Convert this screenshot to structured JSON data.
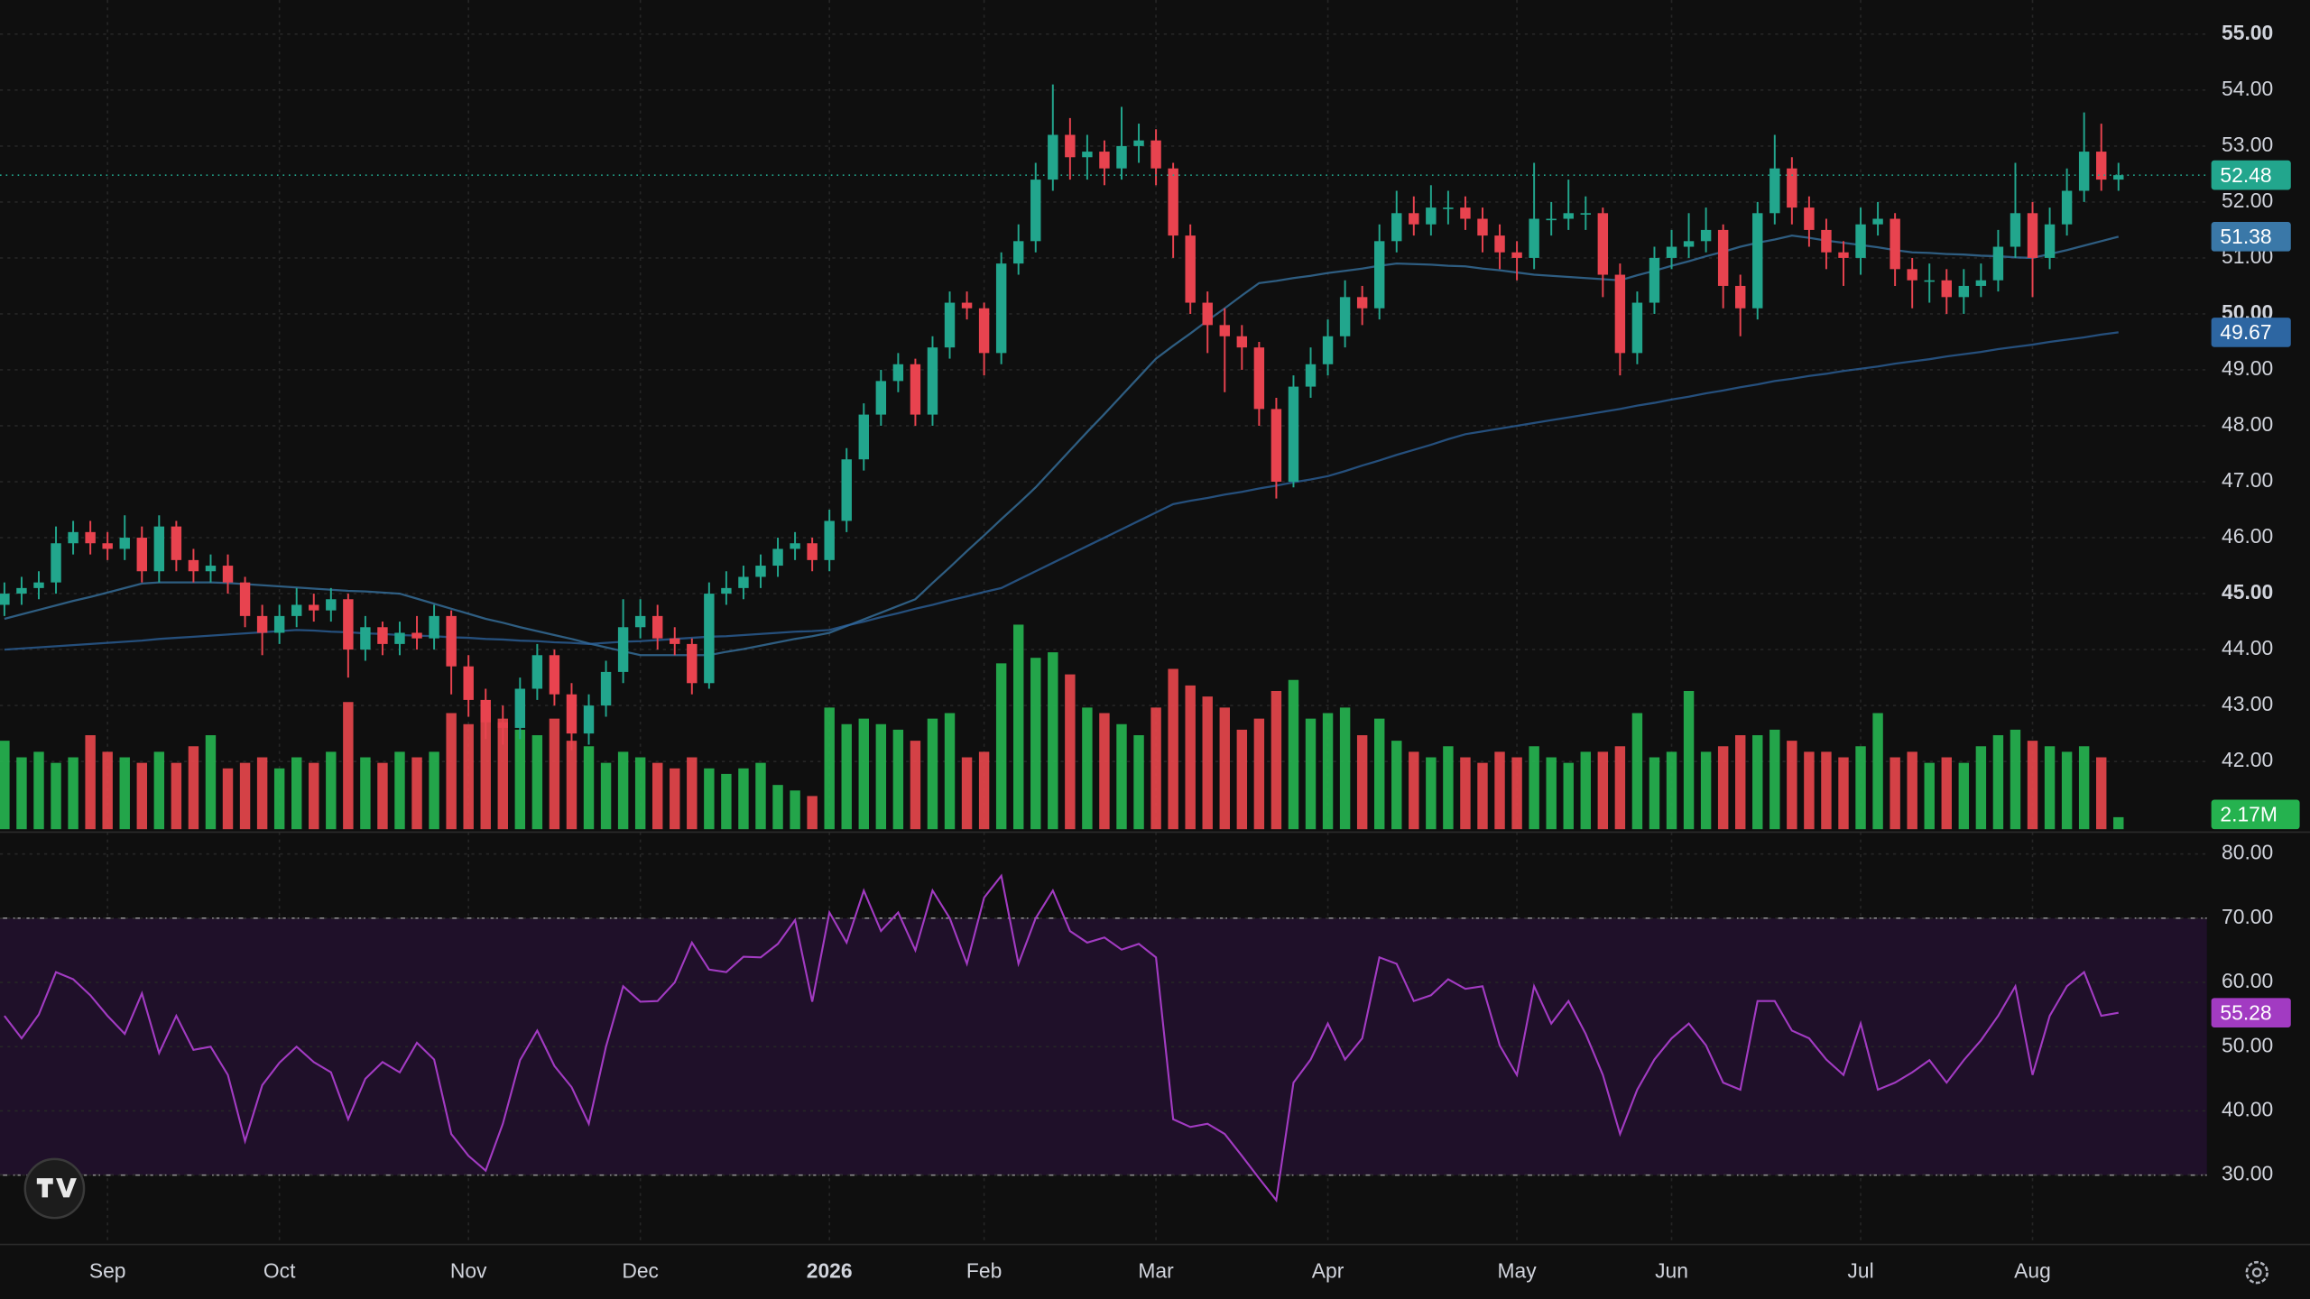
{
  "chart_data": {
    "type": "candlestick",
    "categories": [
      null,
      null,
      null,
      null,
      null,
      null,
      "Sep",
      null,
      null,
      null,
      null,
      null,
      null,
      null,
      null,
      null,
      "Oct",
      null,
      null,
      null,
      null,
      null,
      null,
      null,
      null,
      null,
      null,
      "Nov",
      null,
      null,
      null,
      null,
      null,
      null,
      null,
      null,
      null,
      "Dec",
      null,
      null,
      null,
      null,
      null,
      null,
      null,
      null,
      null,
      null,
      "2026",
      null,
      null,
      null,
      null,
      null,
      null,
      null,
      null,
      "Feb",
      null,
      null,
      null,
      null,
      null,
      null,
      null,
      null,
      null,
      "Mar",
      null,
      null,
      null,
      null,
      null,
      null,
      null,
      null,
      null,
      "Apr",
      null,
      null,
      null,
      null,
      null,
      null,
      null,
      null,
      null,
      null,
      "May",
      null,
      null,
      null,
      null,
      null,
      null,
      null,
      null,
      "Jun",
      null,
      null,
      null,
      null,
      null,
      null,
      null,
      null,
      null,
      null,
      "Jul",
      null,
      null,
      null,
      null,
      null,
      null,
      null,
      null,
      null,
      "Aug",
      null,
      null,
      null,
      null,
      null
    ],
    "open": [
      44.8,
      45.0,
      45.1,
      45.2,
      45.9,
      46.1,
      45.9,
      45.8,
      46.0,
      45.4,
      46.2,
      45.6,
      45.4,
      45.5,
      45.2,
      44.6,
      44.3,
      44.6,
      44.8,
      44.7,
      44.9,
      44.0,
      44.4,
      44.1,
      44.3,
      44.2,
      44.6,
      43.7,
      43.1,
      42.7,
      42.6,
      43.3,
      43.9,
      43.2,
      42.5,
      43.0,
      43.6,
      44.4,
      44.6,
      44.2,
      44.1,
      43.4,
      45.0,
      45.1,
      45.3,
      45.5,
      45.8,
      45.9,
      45.6,
      46.3,
      47.4,
      48.2,
      48.8,
      49.1,
      48.2,
      49.4,
      50.2,
      50.1,
      49.3,
      50.9,
      51.3,
      52.4,
      53.2,
      52.8,
      52.9,
      52.6,
      53.0,
      53.1,
      52.6,
      51.4,
      50.2,
      49.8,
      49.6,
      49.4,
      48.3,
      47.0,
      48.7,
      49.1,
      49.6,
      50.3,
      50.1,
      51.3,
      51.8,
      51.6,
      51.9,
      51.9,
      51.7,
      51.4,
      51.1,
      51.0,
      51.7,
      51.7,
      51.8,
      51.8,
      50.7,
      49.3,
      50.2,
      51.0,
      51.2,
      51.3,
      51.5,
      50.5,
      50.1,
      51.8,
      52.6,
      51.9,
      51.5,
      51.1,
      51.0,
      51.6,
      51.7,
      50.8,
      50.6,
      50.6,
      50.3,
      50.5,
      50.6,
      51.2,
      51.8,
      51.0,
      51.6,
      52.2,
      52.9,
      52.4
    ],
    "high": [
      45.2,
      45.3,
      45.4,
      46.2,
      46.3,
      46.3,
      46.1,
      46.4,
      46.2,
      46.4,
      46.3,
      45.8,
      45.7,
      45.7,
      45.3,
      44.8,
      44.8,
      45.1,
      45.0,
      45.1,
      45.0,
      44.6,
      44.5,
      44.5,
      44.6,
      44.8,
      44.7,
      43.9,
      43.3,
      43.0,
      43.5,
      44.1,
      44.0,
      43.4,
      43.2,
      43.8,
      44.9,
      44.9,
      44.8,
      44.4,
      44.2,
      45.2,
      45.4,
      45.5,
      45.7,
      46.0,
      46.1,
      46.0,
      46.5,
      47.6,
      48.4,
      49.0,
      49.3,
      49.2,
      49.6,
      50.4,
      50.4,
      50.2,
      51.1,
      51.6,
      52.7,
      54.1,
      53.5,
      53.2,
      53.1,
      53.7,
      53.4,
      53.3,
      52.7,
      51.6,
      50.4,
      50.1,
      49.8,
      49.5,
      48.5,
      48.9,
      49.4,
      49.9,
      50.6,
      50.5,
      51.6,
      52.2,
      52.1,
      52.3,
      52.2,
      52.1,
      51.9,
      51.6,
      51.3,
      52.7,
      52.0,
      52.4,
      52.1,
      51.9,
      50.9,
      50.4,
      51.2,
      51.5,
      51.8,
      51.9,
      51.6,
      50.7,
      52.0,
      53.2,
      52.8,
      52.1,
      51.7,
      51.3,
      51.9,
      52.0,
      51.8,
      51.0,
      50.9,
      50.8,
      50.8,
      50.9,
      51.5,
      52.7,
      52.0,
      51.9,
      52.6,
      53.6,
      53.4,
      52.7
    ],
    "low": [
      44.6,
      44.8,
      44.9,
      45.0,
      45.7,
      45.7,
      45.6,
      45.6,
      45.2,
      45.2,
      45.4,
      45.2,
      45.2,
      45.0,
      44.4,
      43.9,
      44.1,
      44.4,
      44.5,
      44.5,
      43.5,
      43.8,
      43.9,
      43.9,
      44.0,
      44.0,
      43.2,
      42.8,
      42.4,
      42.3,
      42.4,
      43.1,
      43.0,
      42.2,
      42.3,
      42.8,
      43.4,
      44.2,
      44.0,
      43.9,
      43.2,
      43.3,
      44.8,
      44.9,
      45.1,
      45.3,
      45.6,
      45.4,
      45.4,
      46.1,
      47.2,
      48.0,
      48.6,
      48.0,
      48.0,
      49.2,
      49.9,
      48.9,
      49.1,
      50.7,
      51.1,
      52.2,
      52.4,
      52.4,
      52.3,
      52.4,
      52.7,
      52.3,
      51.0,
      50.0,
      49.3,
      48.6,
      49.0,
      48.0,
      46.7,
      46.9,
      48.5,
      48.9,
      49.4,
      49.8,
      49.9,
      51.1,
      51.4,
      51.4,
      51.6,
      51.5,
      51.1,
      50.8,
      50.6,
      50.8,
      51.4,
      51.5,
      51.5,
      50.3,
      48.9,
      49.1,
      50.0,
      50.8,
      51.0,
      51.1,
      50.1,
      49.6,
      49.9,
      51.6,
      51.6,
      51.2,
      50.8,
      50.5,
      50.7,
      51.4,
      50.5,
      50.1,
      50.2,
      50.0,
      50.0,
      50.3,
      50.4,
      51.0,
      50.3,
      50.8,
      51.4,
      52.0,
      52.2,
      52.2
    ],
    "close": [
      45.0,
      45.1,
      45.2,
      45.9,
      46.1,
      45.9,
      45.8,
      46.0,
      45.4,
      46.2,
      45.6,
      45.4,
      45.5,
      45.2,
      44.6,
      44.3,
      44.6,
      44.8,
      44.7,
      44.9,
      44.0,
      44.4,
      44.1,
      44.3,
      44.2,
      44.6,
      43.7,
      43.1,
      42.7,
      42.6,
      43.3,
      43.9,
      43.2,
      42.5,
      43.0,
      43.6,
      44.4,
      44.6,
      44.2,
      44.1,
      43.4,
      45.0,
      45.1,
      45.3,
      45.5,
      45.8,
      45.9,
      45.6,
      46.3,
      47.4,
      48.2,
      48.8,
      49.1,
      48.2,
      49.4,
      50.2,
      50.1,
      49.3,
      50.9,
      51.3,
      52.4,
      53.2,
      52.8,
      52.9,
      52.6,
      53.0,
      53.1,
      52.6,
      51.4,
      50.2,
      49.8,
      49.6,
      49.4,
      48.3,
      47.0,
      48.7,
      49.1,
      49.6,
      50.3,
      50.1,
      51.3,
      51.8,
      51.6,
      51.9,
      51.9,
      51.7,
      51.4,
      51.1,
      51.0,
      51.7,
      51.7,
      51.8,
      51.8,
      50.7,
      49.3,
      50.2,
      51.0,
      51.2,
      51.3,
      51.5,
      50.5,
      50.1,
      51.8,
      52.6,
      51.9,
      51.5,
      51.1,
      51.0,
      51.6,
      51.7,
      50.8,
      50.6,
      50.6,
      50.3,
      50.5,
      50.6,
      51.2,
      51.8,
      51.0,
      51.6,
      52.2,
      52.9,
      52.4,
      52.48
    ],
    "up_color": "#22a68d",
    "down_color": "#e8434f",
    "ylim": [
      40.79,
      55.61
    ],
    "yticks": [
      {
        "value": 42,
        "label": "42.00"
      },
      {
        "value": 43,
        "label": "43.00"
      },
      {
        "value": 44,
        "label": "44.00"
      },
      {
        "value": 45,
        "label": "45.00"
      },
      {
        "value": 46,
        "label": "46.00"
      },
      {
        "value": 47,
        "label": "47.00"
      },
      {
        "value": 48,
        "label": "48.00"
      },
      {
        "value": 49,
        "label": "49.00"
      },
      {
        "value": 50,
        "label": "50.00"
      },
      {
        "value": 51,
        "label": "51.00"
      },
      {
        "value": 52,
        "label": "52.00"
      },
      {
        "value": 53,
        "label": "53.00"
      },
      {
        "value": 54,
        "label": "54.00"
      },
      {
        "value": 55,
        "label": "55.00"
      }
    ],
    "grid": true,
    "moving_averages": [
      {
        "color": "#3a78a8",
        "values": [
          44.55,
          44.63,
          44.71,
          44.79,
          44.87,
          44.94,
          45.02,
          45.1,
          45.18,
          45.2,
          45.2,
          45.2,
          45.2,
          45.19,
          45.17,
          45.15,
          45.13,
          45.11,
          45.09,
          45.07,
          45.05,
          45.04,
          45.02,
          45.0,
          44.91,
          44.82,
          44.73,
          44.64,
          44.55,
          44.48,
          44.4,
          44.33,
          44.26,
          44.19,
          44.11,
          44.04,
          43.97,
          43.9,
          43.9,
          43.9,
          43.9,
          43.9,
          43.96,
          44.01,
          44.07,
          44.13,
          44.19,
          44.24,
          44.3,
          44.42,
          44.54,
          44.66,
          44.78,
          44.9,
          45.19,
          45.47,
          45.76,
          46.04,
          46.33,
          46.61,
          46.9,
          47.23,
          47.56,
          47.89,
          48.21,
          48.54,
          48.87,
          49.2,
          49.43,
          49.65,
          49.88,
          50.1,
          50.33,
          50.55,
          50.59,
          50.64,
          50.68,
          50.73,
          50.77,
          50.81,
          50.86,
          50.9,
          50.89,
          50.88,
          50.86,
          50.85,
          50.81,
          50.78,
          50.74,
          50.7,
          50.68,
          50.66,
          50.64,
          50.62,
          50.6,
          50.69,
          50.77,
          50.86,
          50.94,
          51.03,
          51.11,
          51.2,
          51.27,
          51.33,
          51.4,
          51.36,
          51.31,
          51.27,
          51.23,
          51.19,
          51.14,
          51.1,
          51.09,
          51.07,
          51.06,
          51.04,
          51.03,
          51.01,
          51.0,
          51.07,
          51.14,
          51.22,
          51.3,
          51.38
        ]
      },
      {
        "color": "#2d66a2",
        "values": [
          44.0,
          44.02,
          44.04,
          44.06,
          44.08,
          44.1,
          44.12,
          44.14,
          44.16,
          44.19,
          44.21,
          44.23,
          44.25,
          44.27,
          44.29,
          44.31,
          44.33,
          44.35,
          44.34,
          44.32,
          44.31,
          44.29,
          44.28,
          44.26,
          44.25,
          44.24,
          44.22,
          44.21,
          44.19,
          44.18,
          44.16,
          44.15,
          44.13,
          44.12,
          44.1,
          44.12,
          44.14,
          44.15,
          44.17,
          44.19,
          44.21,
          44.23,
          44.24,
          44.26,
          44.28,
          44.3,
          44.32,
          44.33,
          44.35,
          44.43,
          44.5,
          44.58,
          44.65,
          44.73,
          44.8,
          44.88,
          44.95,
          45.03,
          45.1,
          45.25,
          45.4,
          45.55,
          45.7,
          45.85,
          46.0,
          46.15,
          46.3,
          46.45,
          46.6,
          46.66,
          46.71,
          46.77,
          46.82,
          46.88,
          46.93,
          46.99,
          47.04,
          47.1,
          47.19,
          47.29,
          47.38,
          47.48,
          47.57,
          47.66,
          47.76,
          47.85,
          47.9,
          47.95,
          48.0,
          48.05,
          48.1,
          48.15,
          48.2,
          48.25,
          48.3,
          48.36,
          48.41,
          48.47,
          48.52,
          48.58,
          48.63,
          48.69,
          48.74,
          48.8,
          48.84,
          48.89,
          48.93,
          48.98,
          49.02,
          49.06,
          49.11,
          49.15,
          49.19,
          49.24,
          49.28,
          49.32,
          49.37,
          49.41,
          49.45,
          49.5,
          49.54,
          49.58,
          49.63,
          49.67
        ]
      }
    ],
    "volume": {
      "values": [
        16,
        13,
        14,
        12,
        13,
        17,
        14,
        13,
        12,
        14,
        12,
        15,
        17,
        11,
        12,
        13,
        11,
        13,
        12,
        14,
        23,
        13,
        12,
        14,
        13,
        14,
        21,
        19,
        22,
        20,
        18,
        17,
        20,
        16,
        15,
        12,
        14,
        13,
        12,
        11,
        13,
        11,
        10,
        11,
        12,
        8,
        7,
        6,
        22,
        19,
        20,
        19,
        18,
        16,
        20,
        21,
        13,
        14,
        30,
        37,
        31,
        32,
        28,
        22,
        21,
        19,
        17,
        22,
        29,
        26,
        24,
        22,
        18,
        20,
        25,
        27,
        20,
        21,
        22,
        17,
        20,
        16,
        14,
        13,
        15,
        13,
        12,
        14,
        13,
        15,
        13,
        12,
        14,
        14,
        15,
        21,
        13,
        14,
        25,
        14,
        15,
        17,
        17,
        18,
        16,
        14,
        14,
        13,
        15,
        21,
        13,
        14,
        12,
        13,
        12,
        15,
        17,
        18,
        16,
        15,
        14,
        15,
        13,
        2.17
      ],
      "value_labels": [
        null,
        null,
        null,
        null,
        null,
        null,
        null,
        null,
        null,
        null,
        null,
        null,
        null,
        null,
        null,
        null,
        null,
        null,
        null,
        null,
        null,
        null,
        null,
        null,
        null,
        null,
        null,
        null,
        null,
        null,
        null,
        null,
        null,
        null,
        null,
        null,
        null,
        null,
        null,
        null,
        null,
        null,
        null,
        null,
        null,
        null,
        null,
        null,
        null,
        null,
        null,
        null,
        null,
        null,
        null,
        null,
        null,
        null,
        null,
        null,
        null,
        null,
        null,
        null,
        null,
        null,
        null,
        null,
        null,
        null,
        null,
        null,
        null,
        null,
        null,
        null,
        null,
        null,
        null,
        null,
        null,
        null,
        null,
        null,
        null,
        null,
        null,
        null,
        null,
        null,
        null,
        null,
        null,
        null,
        null,
        null,
        null,
        null,
        null,
        null,
        null,
        null,
        null,
        null,
        null,
        null,
        null,
        null,
        null,
        null,
        null,
        null,
        null,
        null,
        null,
        null,
        null,
        null,
        null,
        null,
        null,
        null,
        null,
        "2.17M"
      ],
      "up_color": "#25b24f",
      "down_color": "#e5454b",
      "ylim": [
        0,
        150
      ]
    },
    "rsi": {
      "values": [
        54.8,
        51.3,
        55,
        61.6,
        60.5,
        58,
        54.8,
        52,
        58.3,
        49,
        54.8,
        49.5,
        50,
        45.6,
        35.3,
        44,
        47.5,
        50,
        47.6,
        46,
        38.7,
        45,
        47.6,
        46,
        50.6,
        48,
        36.4,
        33,
        30.7,
        38,
        47.9,
        52.5,
        47,
        43.7,
        38,
        50,
        59.4,
        57,
        57.1,
        60,
        66.2,
        62,
        61.6,
        64,
        63.9,
        66,
        69.7,
        57,
        70.9,
        66.2,
        74.3,
        68,
        70.9,
        65,
        74.3,
        70,
        62.9,
        73.2,
        76.6,
        62.9,
        70,
        74.3,
        68,
        66.2,
        67,
        65.1,
        66,
        63.9,
        38.7,
        37.5,
        38,
        36.4,
        33,
        29.5,
        26.1,
        44.4,
        48,
        53.6,
        48,
        51.3,
        63.9,
        62.9,
        57.1,
        58,
        60.5,
        59,
        59.4,
        50.2,
        45.6,
        59.4,
        53.6,
        57.1,
        52,
        45.6,
        36.4,
        43.3,
        48,
        51.3,
        53.6,
        50.2,
        44.4,
        43.3,
        57.1,
        57.1,
        52.5,
        51.3,
        48,
        45.6,
        53.6,
        43.3,
        44.4,
        46,
        47.9,
        44.4,
        47.9,
        51,
        54.8,
        59.4,
        45.6,
        54.8,
        59.4,
        61.6,
        54.8,
        55.28
      ],
      "color": "#a23bc2",
      "band": [
        30,
        70
      ],
      "band_color": "#1f1029",
      "ylim": [
        19.2,
        83.4
      ],
      "yticks": [
        {
          "value": 30,
          "label": "30.00"
        },
        {
          "value": 40,
          "label": "40.00"
        },
        {
          "value": 50,
          "label": "50.00"
        },
        {
          "value": 60,
          "label": "60.00"
        },
        {
          "value": 70,
          "label": "70.00"
        },
        {
          "value": 80,
          "label": "80.00"
        }
      ]
    }
  }
}
